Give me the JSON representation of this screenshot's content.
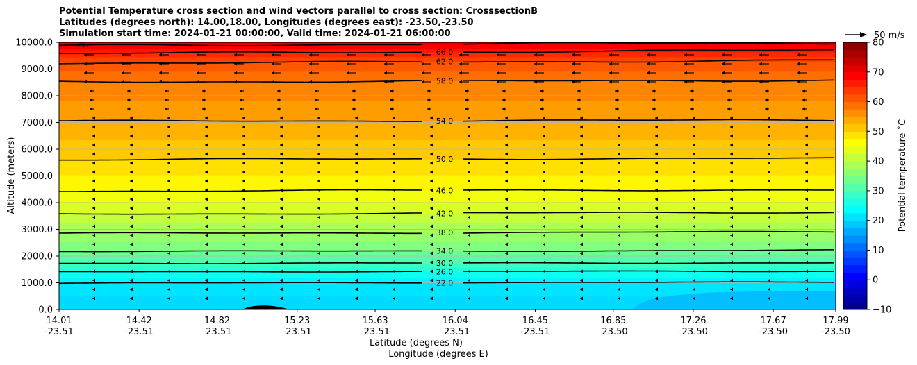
{
  "chart_data": {
    "type": "contour",
    "title_lines": [
      "Potential Temperature cross section and wind vectors parallel to cross section: CrosssectionB",
      "Latitudes (degrees north): 14.00,18.00, Longitudes (degrees east): -23.50,-23.50",
      "Simulation start time: 2024-01-21 00:00:00, Valid time: 2024-01-21 06:00:00"
    ],
    "ylabel": "Altitude (meters)",
    "xlabel_lat": "Latitude (degrees N)",
    "xlabel_lon": "Longitude (degrees E)",
    "ylim": [
      0,
      10000
    ],
    "yticks": [
      "0.0",
      "1000.0",
      "2000.0",
      "3000.0",
      "4000.0",
      "5000.0",
      "6000.0",
      "7000.0",
      "8000.0",
      "9000.0",
      "10000.0"
    ],
    "xlim": [
      14.01,
      17.99
    ],
    "xticks": [
      {
        "lat": "14.01",
        "lon": "-23.51"
      },
      {
        "lat": "14.42",
        "lon": "-23.51"
      },
      {
        "lat": "14.82",
        "lon": "-23.51"
      },
      {
        "lat": "15.23",
        "lon": "-23.51"
      },
      {
        "lat": "15.63",
        "lon": "-23.51"
      },
      {
        "lat": "16.04",
        "lon": "-23.51"
      },
      {
        "lat": "16.45",
        "lon": "-23.51"
      },
      {
        "lat": "16.85",
        "lon": "-23.50"
      },
      {
        "lat": "17.26",
        "lon": "-23.50"
      },
      {
        "lat": "17.67",
        "lon": "-23.50"
      },
      {
        "lat": "17.99",
        "lon": "-23.50"
      }
    ],
    "grid": true,
    "colormap": "jet",
    "colorbar": {
      "label": "Potential temperature ˚C",
      "range": [
        -10,
        80
      ],
      "ticks": [
        "−10",
        "0",
        "10",
        "20",
        "30",
        "40",
        "50",
        "60",
        "70",
        "80"
      ]
    },
    "contour_levels": [
      {
        "value": 22,
        "label": "22.0",
        "alt": 1000
      },
      {
        "value": 26,
        "label": "26.0",
        "alt": 1420
      },
      {
        "value": 30,
        "label": "30.0",
        "alt": 1740
      },
      {
        "value": 34,
        "label": "34.0",
        "alt": 2200
      },
      {
        "value": 38,
        "label": "38.0",
        "alt": 2880
      },
      {
        "value": 42,
        "label": "42.0",
        "alt": 3600
      },
      {
        "value": 46,
        "label": "46.0",
        "alt": 4450
      },
      {
        "value": 50,
        "label": "50.0",
        "alt": 5630
      },
      {
        "value": 54,
        "label": "54.0",
        "alt": 7070
      },
      {
        "value": 58,
        "label": "58.0",
        "alt": 8560
      },
      {
        "value": 62,
        "label": "62.0",
        "alt": 9280
      },
      {
        "value": 66,
        "label": "66.0",
        "alt": 9640
      },
      {
        "value": 70,
        "label": "70.",
        "alt": 9920
      }
    ],
    "terrain": {
      "center_lat": 15.07,
      "half_width_lat": 0.12,
      "peak_alt": 200
    },
    "wind_reference": {
      "label": "50 m/s"
    }
  }
}
